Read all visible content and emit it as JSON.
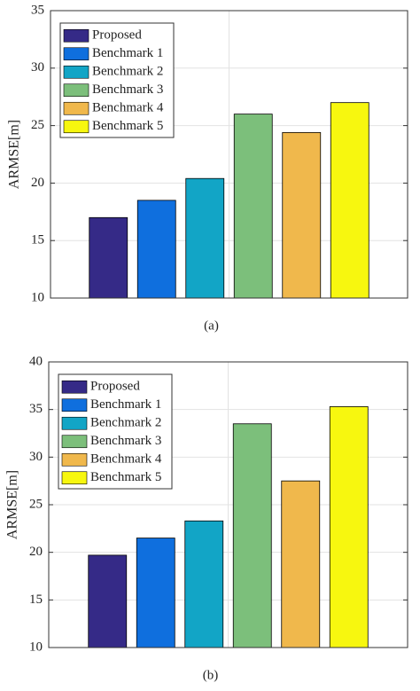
{
  "chart_data": [
    {
      "type": "bar",
      "caption": "(a)",
      "y_label": "ARMSE[m]",
      "categories": [
        null
      ],
      "ylim": [
        10,
        35
      ],
      "yticks": [
        10,
        15,
        20,
        25,
        30,
        35
      ],
      "grid": true,
      "legend": "upper left",
      "series": [
        {
          "name": "Proposed",
          "color": "#352a87",
          "values": [
            17
          ]
        },
        {
          "name": "Benchmark 1",
          "color": "#0f6fde",
          "values": [
            18.5
          ]
        },
        {
          "name": "Benchmark 2",
          "color": "#12a5c6",
          "values": [
            20.4
          ]
        },
        {
          "name": "Benchmark 3",
          "color": "#7cbf7b",
          "values": [
            26
          ]
        },
        {
          "name": "Benchmark 4",
          "color": "#f0b84c",
          "values": [
            24.4
          ]
        },
        {
          "name": "Benchmark 5",
          "color": "#f7f70f",
          "values": [
            27
          ]
        }
      ]
    },
    {
      "type": "bar",
      "caption": "(b)",
      "y_label": "ARMSE[m]",
      "categories": [
        null
      ],
      "ylim": [
        10,
        40
      ],
      "yticks": [
        10,
        15,
        20,
        25,
        30,
        35,
        40
      ],
      "grid": true,
      "legend": "upper left",
      "series": [
        {
          "name": "Proposed",
          "color": "#352a87",
          "values": [
            19.7
          ]
        },
        {
          "name": "Benchmark 1",
          "color": "#0f6fde",
          "values": [
            21.5
          ]
        },
        {
          "name": "Benchmark 2",
          "color": "#12a5c6",
          "values": [
            23.3
          ]
        },
        {
          "name": "Benchmark 3",
          "color": "#7cbf7b",
          "values": [
            33.5
          ]
        },
        {
          "name": "Benchmark 4",
          "color": "#f0b84c",
          "values": [
            27.5
          ]
        },
        {
          "name": "Benchmark 5",
          "color": "#f7f70f",
          "values": [
            35.3
          ]
        }
      ]
    }
  ]
}
